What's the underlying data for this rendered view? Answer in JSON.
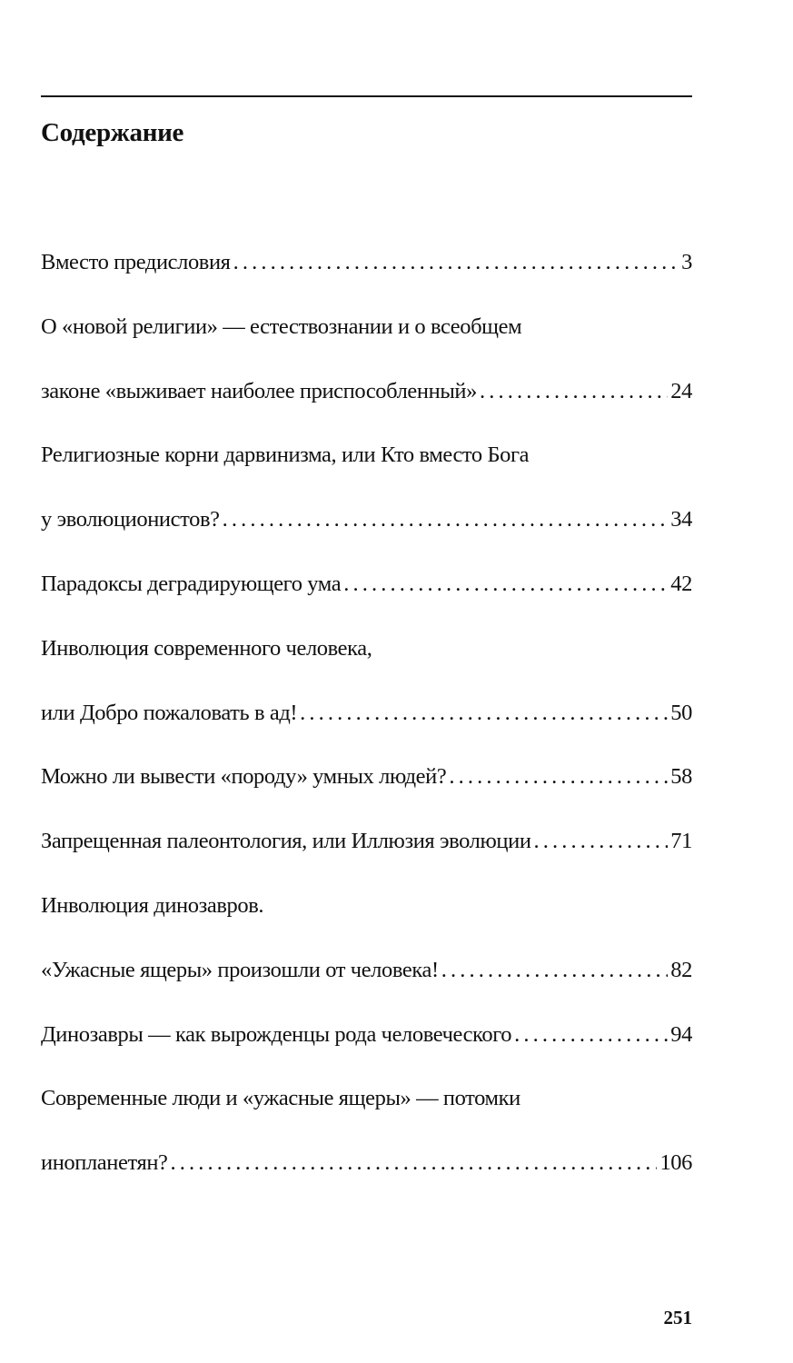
{
  "title": "Содержание",
  "entries": [
    {
      "lines": [
        "Вместо предисловия"
      ],
      "page": "3"
    },
    {
      "lines": [
        "О «новой религии» — естествознании и о всеобщем",
        "законе «выживает наиболее приспособленный»"
      ],
      "page": "24"
    },
    {
      "lines": [
        "Религиозные корни дарвинизма, или Кто вместо Бога",
        "у эволюционистов?"
      ],
      "page": "34"
    },
    {
      "lines": [
        "Парадоксы деградирующего ума"
      ],
      "page": "42"
    },
    {
      "lines": [
        "Инволюция современного человека,",
        "или Добро пожаловать в ад!"
      ],
      "page": "50"
    },
    {
      "lines": [
        "Можно ли вывести «породу» умных людей?"
      ],
      "page": "58"
    },
    {
      "lines": [
        "Запрещенная палеонтология, или Иллюзия эволюции"
      ],
      "page": "71"
    },
    {
      "lines": [
        "Инволюция динозавров.",
        "«Ужасные ящеры» произошли от человека!"
      ],
      "page": "82"
    },
    {
      "lines": [
        "Динозавры — как вырожденцы рода человеческого"
      ],
      "page": "94"
    },
    {
      "lines": [
        "Современные люди и «ужасные ящеры» — потомки",
        "инопланетян?"
      ],
      "page": "106"
    }
  ],
  "page_number": "251"
}
